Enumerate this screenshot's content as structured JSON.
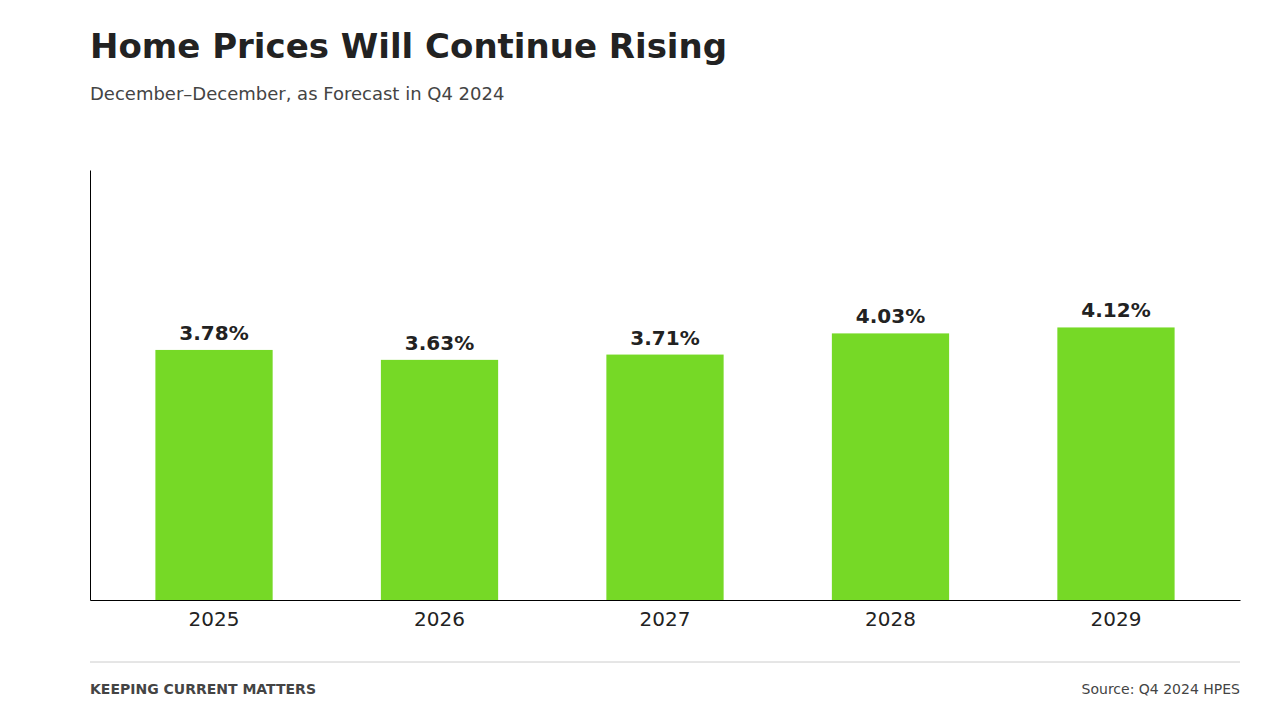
{
  "chart_data": {
    "type": "bar",
    "title": "Home Prices Will Continue Rising",
    "subtitle": "December–December, as Forecast in Q4 2024",
    "categories": [
      "2025",
      "2026",
      "2027",
      "2028",
      "2029"
    ],
    "values": [
      3.78,
      3.63,
      3.71,
      4.03,
      4.12
    ],
    "value_labels": [
      "3.78%",
      "3.63%",
      "3.71%",
      "4.03%",
      "4.12%"
    ],
    "color": "#76d926",
    "ylim": [
      0,
      6.5
    ],
    "grid": false,
    "data_labels": true,
    "tick_labels": "x",
    "annotations": [
      "KEEPING CURRENT MATTERS",
      "Source: Q4 2024 HPES"
    ]
  }
}
